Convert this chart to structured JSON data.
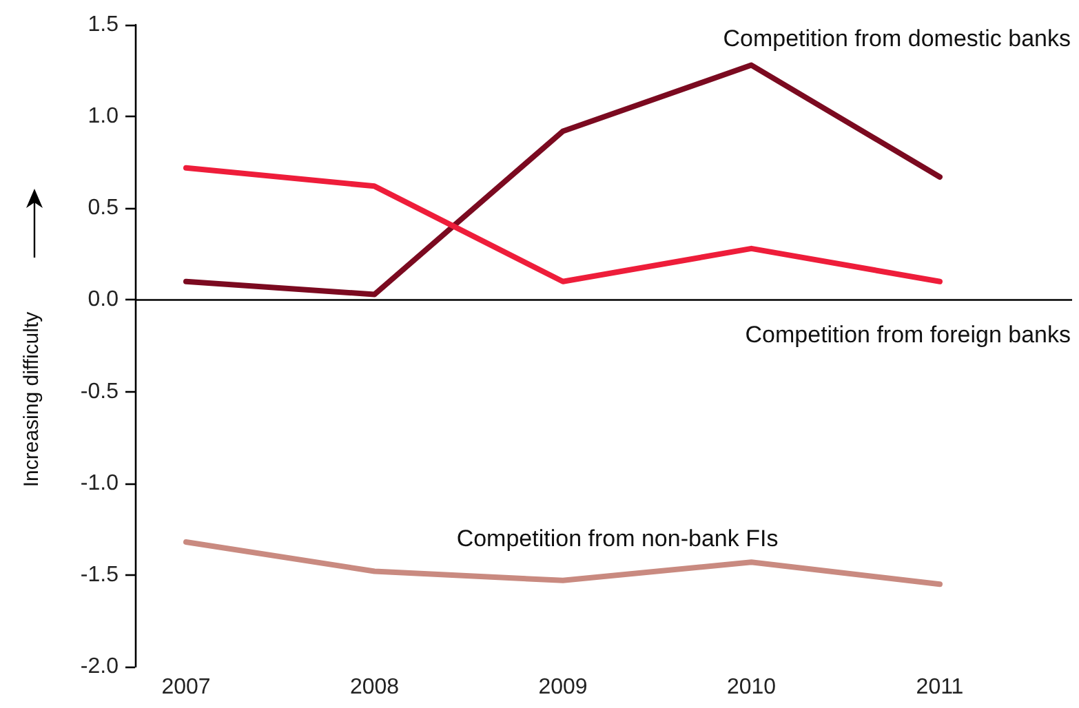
{
  "chart_data": {
    "type": "line",
    "ylabel": "Increasing difficulty",
    "categories": [
      "2007",
      "2008",
      "2009",
      "2010",
      "2011"
    ],
    "series": [
      {
        "name": "Competition from domestic banks",
        "color": "#7b0a20",
        "values": [
          0.1,
          0.03,
          0.92,
          1.28,
          0.67
        ]
      },
      {
        "name": "Competition from foreign banks",
        "color": "#ee1d3a",
        "values": [
          0.72,
          0.62,
          0.1,
          0.28,
          0.1
        ]
      },
      {
        "name": "Competition from non-bank FIs",
        "color": "#c98a80",
        "values": [
          -1.32,
          -1.48,
          -1.53,
          -1.43,
          -1.55
        ]
      }
    ],
    "ylim": [
      -2.0,
      1.5
    ],
    "yticks": [
      {
        "value": -2,
        "label": "-2.0"
      },
      {
        "value": -1.5,
        "label": "-1.5"
      },
      {
        "value": -1,
        "label": "-1.0"
      },
      {
        "value": -0.5,
        "label": "-0.5"
      },
      {
        "value": 0,
        "label": "0.0"
      },
      {
        "value": 0.5,
        "label": "0.5"
      },
      {
        "value": 1,
        "label": "1.0"
      },
      {
        "value": 1.5,
        "label": "1.5"
      }
    ],
    "ref_lines": [
      {
        "axis": "y",
        "value": 0,
        "color": "#000000"
      }
    ],
    "grid": false,
    "legend": false,
    "marker": "none",
    "line_style": "solid"
  }
}
